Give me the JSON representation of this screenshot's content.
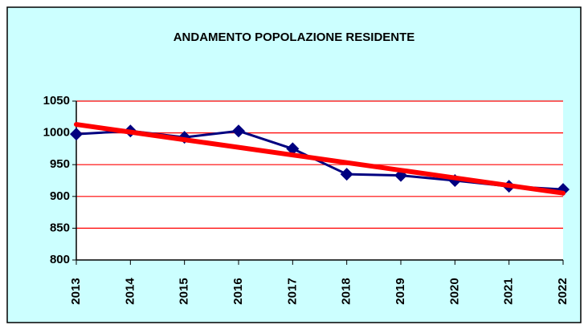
{
  "chart_data": {
    "type": "line",
    "title": "ANDAMENTO POPOLAZIONE RESIDENTE",
    "categories": [
      "2013",
      "2014",
      "2015",
      "2016",
      "2017",
      "2018",
      "2019",
      "2020",
      "2021",
      "2022"
    ],
    "series": [
      {
        "color": "#000080",
        "marker": "diamond",
        "line_width": 3,
        "values": [
          998,
          1003,
          993,
          1003,
          975,
          935,
          933,
          925,
          916,
          911
        ]
      },
      {
        "color": "#ff0000",
        "line_width": 6,
        "values": [
          1013.3,
          1001.2,
          989.2,
          977.2,
          965.2,
          953.2,
          941.2,
          929.2,
          917.2,
          905.2
        ]
      }
    ],
    "ylim": [
      800,
      1050
    ],
    "yticks": [
      800,
      850,
      900,
      950,
      1000,
      1050
    ],
    "grid": true,
    "grid_color": "#ff0000",
    "background": "#ccffff",
    "plot_background": "#ffffff"
  }
}
